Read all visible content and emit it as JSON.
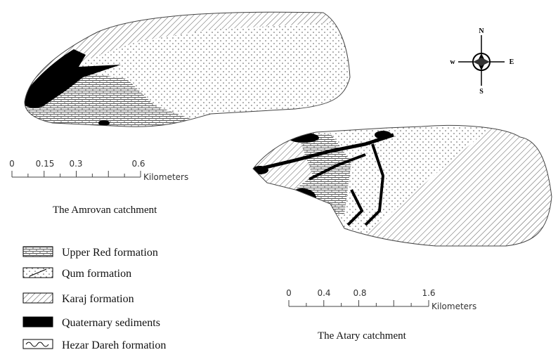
{
  "compass": {
    "n": "N",
    "s": "S",
    "e": "E",
    "w": "w"
  },
  "maps": [
    {
      "name": "The Amrovan catchment",
      "scale": {
        "labels": [
          "0",
          "0.15",
          "0.3",
          "0.6"
        ],
        "unit": "Kilometers"
      }
    },
    {
      "name": "The Atary catchment",
      "scale": {
        "labels": [
          "0",
          "0.4",
          "0.8",
          "1.6"
        ],
        "unit": "Kilometers"
      }
    }
  ],
  "legend": [
    "Upper Red formation",
    "Qum formation",
    "Karaj formation",
    "Quaternary sediments",
    "Hezar Dareh formation"
  ]
}
